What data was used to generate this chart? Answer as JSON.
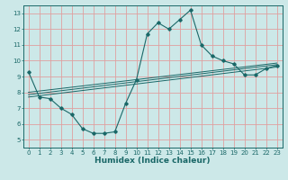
{
  "xlabel": "Humidex (Indice chaleur)",
  "bg_color": "#cce8e8",
  "line_color": "#1a6868",
  "grid_color": "#e0a0a0",
  "xlim": [
    -0.5,
    23.5
  ],
  "ylim": [
    4.5,
    13.5
  ],
  "xticks": [
    0,
    1,
    2,
    3,
    4,
    5,
    6,
    7,
    8,
    9,
    10,
    11,
    12,
    13,
    14,
    15,
    16,
    17,
    18,
    19,
    20,
    21,
    22,
    23
  ],
  "yticks": [
    5,
    6,
    7,
    8,
    9,
    10,
    11,
    12,
    13
  ],
  "main_curve_x": [
    0,
    1,
    2,
    3,
    4,
    5,
    6,
    7,
    8,
    9,
    10,
    11,
    12,
    13,
    14,
    15,
    16,
    17,
    18,
    19,
    20,
    21,
    22,
    23
  ],
  "main_curve_y": [
    9.3,
    7.7,
    7.6,
    7.0,
    6.6,
    5.7,
    5.4,
    5.4,
    5.5,
    7.3,
    8.8,
    11.7,
    12.4,
    12.0,
    12.6,
    13.2,
    11.0,
    10.3,
    10.0,
    9.8,
    9.1,
    9.1,
    9.5,
    9.7
  ],
  "line1_x": [
    0,
    23
  ],
  "line1_y": [
    7.85,
    9.75
  ],
  "line2_x": [
    0,
    23
  ],
  "line2_y": [
    8.0,
    9.85
  ],
  "line3_x": [
    0,
    23
  ],
  "line3_y": [
    7.7,
    9.6
  ],
  "font_size_label": 6,
  "font_size_tick": 5,
  "font_size_xlabel": 6.5
}
